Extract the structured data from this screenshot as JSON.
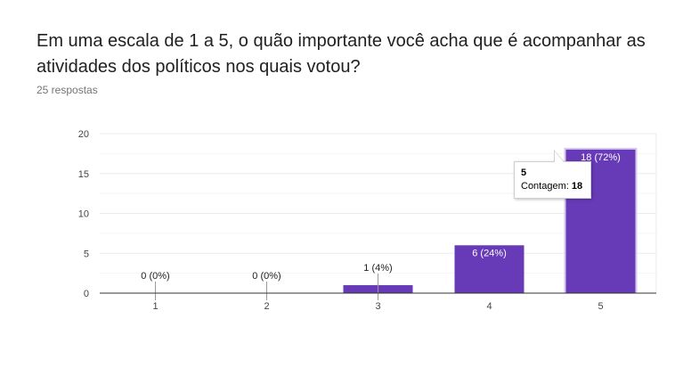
{
  "question": {
    "title": "Em uma escala de 1 a 5, o quão importante você acha que é acompanhar as atividades dos políticos nos quais votou?",
    "responses": "25 respostas"
  },
  "tooltip": {
    "category": "5",
    "label": "Contagem:",
    "value": "18"
  },
  "colors": {
    "bar": "#673ab7",
    "bar_highlight_border": "#d7c8ef",
    "grid": "#ebebeb",
    "axis": "#333333"
  },
  "chart_data": {
    "type": "bar",
    "categories": [
      "1",
      "2",
      "3",
      "4",
      "5"
    ],
    "values": [
      0,
      0,
      1,
      6,
      18
    ],
    "data_labels": [
      "0 (0%)",
      "0 (0%)",
      "1 (4%)",
      "6 (24%)",
      "18 (72%)"
    ],
    "yticks": [
      0,
      5,
      10,
      15,
      20
    ],
    "ylim": [
      0,
      20
    ],
    "highlighted_index": 4,
    "grid": true
  }
}
